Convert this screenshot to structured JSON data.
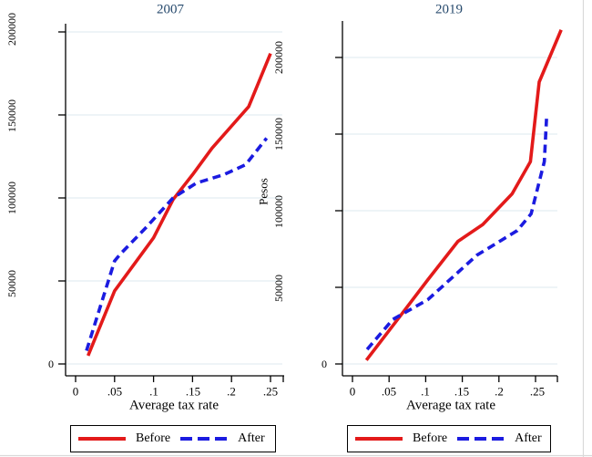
{
  "colors": {
    "before_line": "#e31a1a",
    "after_line": "#1b1be0",
    "panel_title": "#274a6d",
    "gridline": "#e4eef2",
    "axis": "#000000",
    "window_border": "#d9d9d9"
  },
  "legend": {
    "before_label": "Before",
    "after_label": "After"
  },
  "panels": [
    {
      "title": "2007",
      "x_axis_title": "Average tax rate",
      "y_tick_labels": [
        "200000",
        "150000",
        "100000",
        "50000",
        "0"
      ],
      "x_tick_labels": [
        "0",
        ".05",
        ".1",
        ".15",
        ".2",
        ".25"
      ]
    },
    {
      "title": "2019",
      "y_axis_title": "Pesos",
      "x_axis_title": "Average tax rate",
      "y_tick_labels": [
        "200000",
        "150000",
        "100000",
        "50000",
        "0"
      ],
      "x_tick_labels": [
        "0",
        ".05",
        ".1",
        ".15",
        ".2",
        ".25"
      ]
    }
  ],
  "chart_data": [
    {
      "type": "line",
      "title": "2007",
      "xlabel": "Average tax rate",
      "ylabel": "Pesos",
      "xlim": [
        0,
        0.27
      ],
      "ylim": [
        0,
        215000
      ],
      "x_tick_values": [
        0,
        0.05,
        0.1,
        0.15,
        0.2,
        0.25
      ],
      "y_gridline_values": [
        0,
        50000,
        100000,
        150000,
        200000
      ],
      "grid": true,
      "legend_position": "bottom",
      "series": [
        {
          "name": "Before",
          "style": "solid",
          "x": [
            0.016,
            0.05,
            0.1,
            0.125,
            0.15,
            0.175,
            0.222,
            0.25
          ],
          "y": [
            5000,
            44000,
            76000,
            99000,
            114000,
            130000,
            155000,
            187000
          ]
        },
        {
          "name": "After",
          "style": "dashed",
          "x": [
            0.014,
            0.05,
            0.057,
            0.09,
            0.125,
            0.155,
            0.19,
            0.218,
            0.245
          ],
          "y": [
            8000,
            62000,
            66000,
            82000,
            100000,
            109000,
            114000,
            120000,
            136000
          ]
        }
      ]
    },
    {
      "type": "line",
      "title": "2019",
      "xlabel": "Average tax rate",
      "ylabel": "Pesos",
      "xlim": [
        0,
        0.29
      ],
      "ylim": [
        0,
        225000
      ],
      "x_tick_values": [
        0,
        0.05,
        0.1,
        0.15,
        0.2,
        0.25
      ],
      "y_gridline_values": [
        0,
        50000,
        100000,
        150000,
        200000
      ],
      "grid": true,
      "legend_position": "bottom",
      "series": [
        {
          "name": "Before",
          "style": "solid",
          "x": [
            0.019,
            0.06,
            0.103,
            0.144,
            0.178,
            0.218,
            0.243,
            0.255,
            0.285
          ],
          "y": [
            2500,
            28000,
            55000,
            80000,
            91000,
            111000,
            132000,
            184000,
            218000
          ]
        },
        {
          "name": "After",
          "style": "dashed",
          "x": [
            0.02,
            0.055,
            0.103,
            0.17,
            0.225,
            0.244,
            0.262,
            0.265
          ],
          "y": [
            9500,
            29000,
            42000,
            71000,
            87000,
            98000,
            132000,
            160000
          ]
        }
      ]
    }
  ]
}
